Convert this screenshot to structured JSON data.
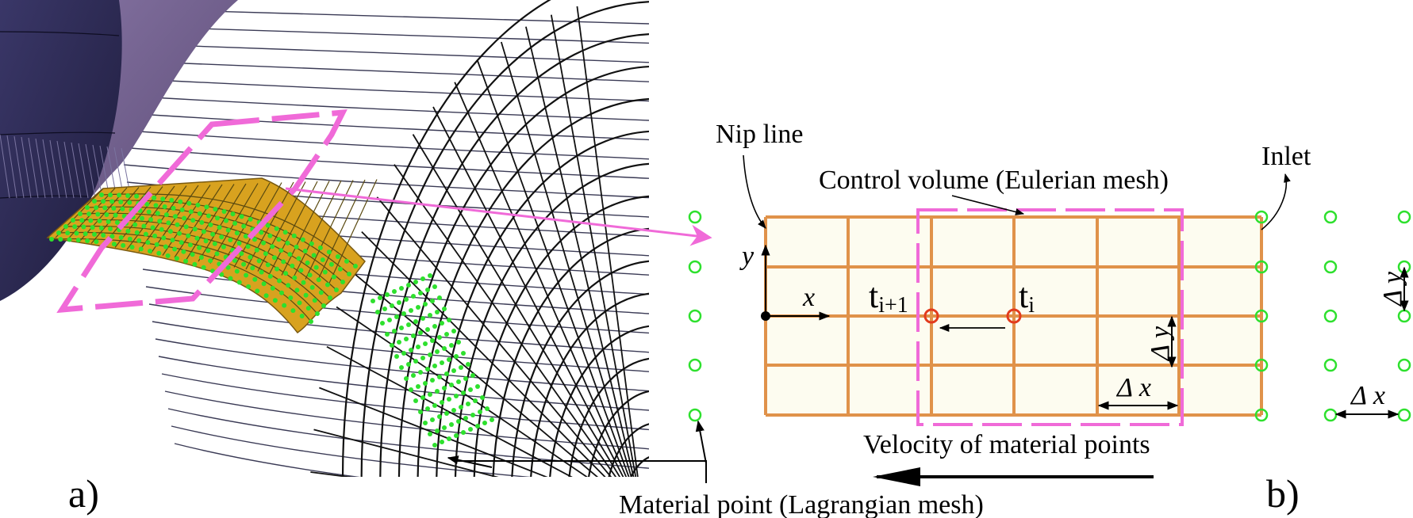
{
  "panel_a": {
    "label": "a)"
  },
  "panel_b": {
    "label": "b)",
    "nip_line": "Nip line",
    "control_volume": "Control volume  (Eulerian mesh)",
    "inlet": "Inlet",
    "axis_y": "y",
    "axis_x": "x",
    "t_next_base": "t",
    "t_next_sub": "i+1",
    "t_curr_base": "t",
    "t_curr_sub": "i",
    "delta_y": "Δ y",
    "delta_x": "Δ x",
    "delta_y_right": "Δ y",
    "delta_x_right": "Δ x",
    "velocity_label": "Velocity of material points"
  },
  "material_point_label": "Material point (Lagrangian mesh)",
  "colors": {
    "mesh_orange": "#e0924a",
    "cell_fill": "#fdfcf0",
    "control_volume_magenta": "#f06ad8",
    "material_point_green": "#2ee02e",
    "tracked_point_red": "#e23b1e",
    "roller_purple": "#6b5a86",
    "roller_dark": "#2b2850",
    "strip_gold": "#d8a21f"
  }
}
